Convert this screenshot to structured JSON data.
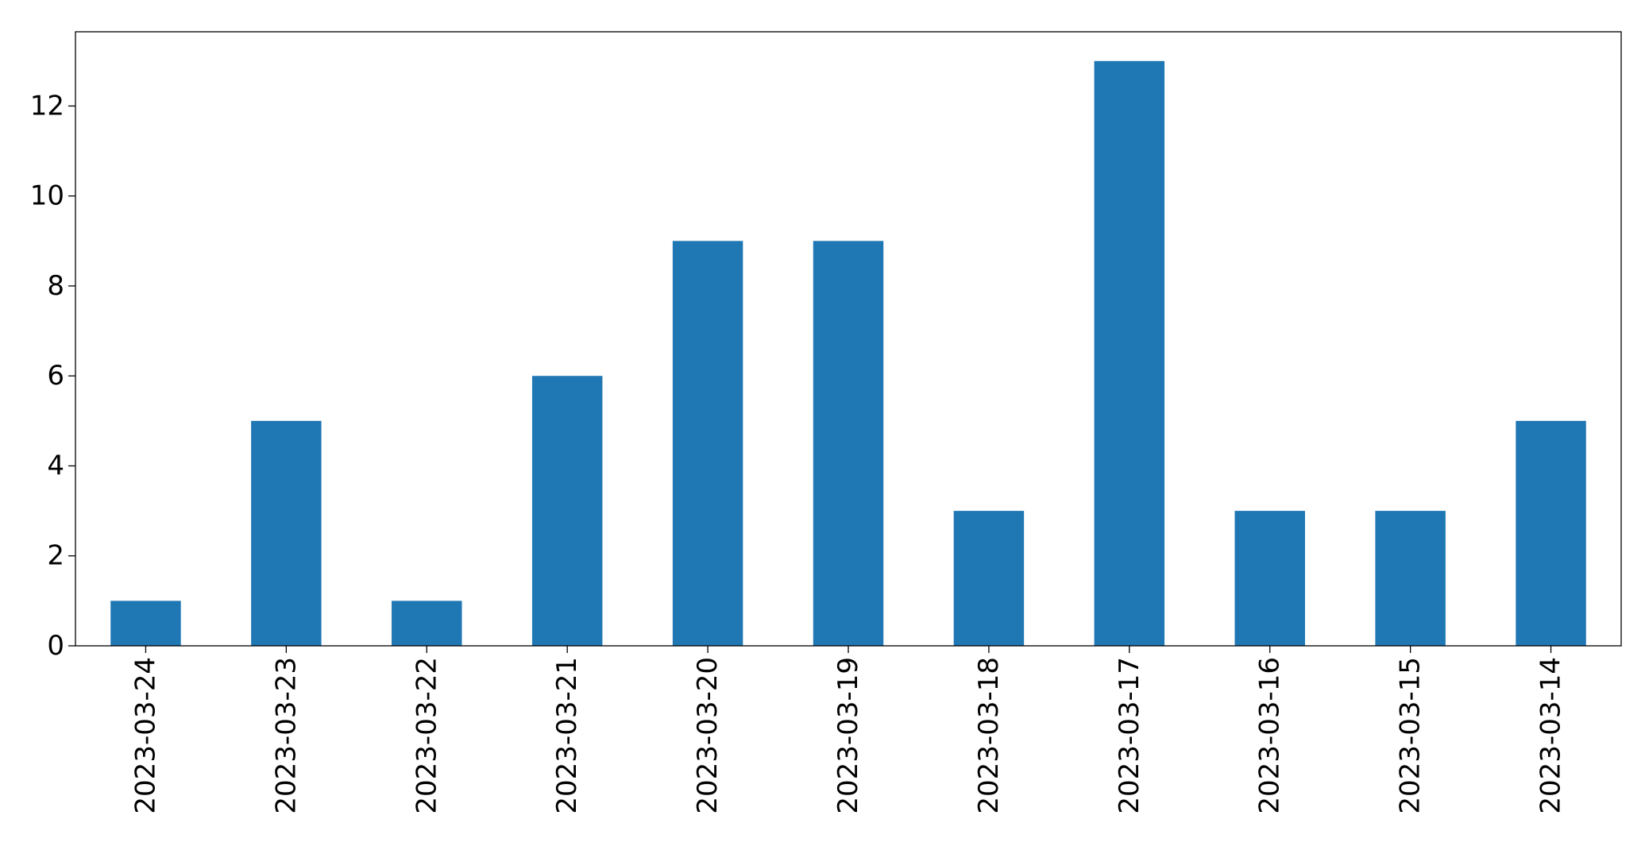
{
  "chart_data": {
    "type": "bar",
    "title": "",
    "xlabel": "",
    "ylabel": "",
    "categories": [
      "2023-03-24",
      "2023-03-23",
      "2023-03-22",
      "2023-03-21",
      "2023-03-20",
      "2023-03-19",
      "2023-03-18",
      "2023-03-17",
      "2023-03-16",
      "2023-03-15",
      "2023-03-14"
    ],
    "values": [
      1,
      5,
      1,
      6,
      9,
      9,
      3,
      13,
      3,
      3,
      5
    ],
    "ylim": [
      0,
      13.65
    ],
    "yticks": [
      0,
      2,
      4,
      6,
      8,
      10,
      12
    ],
    "x_tick_rotation": "vertical",
    "grid": false,
    "legend": "none",
    "bar_color": "#1f77b4"
  }
}
